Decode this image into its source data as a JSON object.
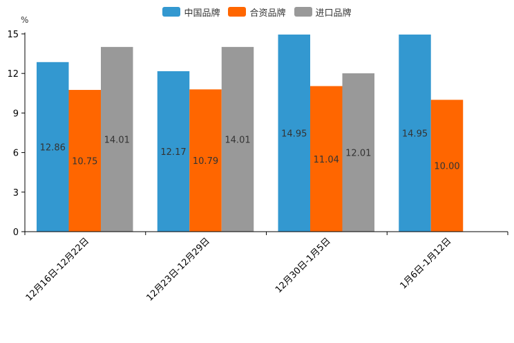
{
  "chart_data": {
    "type": "bar",
    "unit": "%",
    "categories": [
      "12月16日-12月22日",
      "12月23日-12月29日",
      "12月30日-1月5日",
      "1月6日-1月12日"
    ],
    "series": [
      {
        "name": "中国品牌",
        "color": "#3398d0",
        "values": [
          12.86,
          12.17,
          14.95,
          14.95
        ],
        "labels": [
          "12.86",
          "12.17",
          "14.95",
          "14.95"
        ]
      },
      {
        "name": "合资品牌",
        "color": "#ff6600",
        "values": [
          10.75,
          10.79,
          11.04,
          10.0
        ],
        "labels": [
          "10.75",
          "10.79",
          "11.04",
          "10.00"
        ]
      },
      {
        "name": "进口品牌",
        "color": "#999999",
        "values": [
          14.01,
          14.01,
          12.01,
          null
        ],
        "labels": [
          "14.01",
          "14.01",
          "12.01",
          ""
        ]
      }
    ],
    "yticks": [
      "0",
      "3",
      "6",
      "9",
      "12",
      "15"
    ],
    "ylim": [
      0,
      15
    ]
  }
}
